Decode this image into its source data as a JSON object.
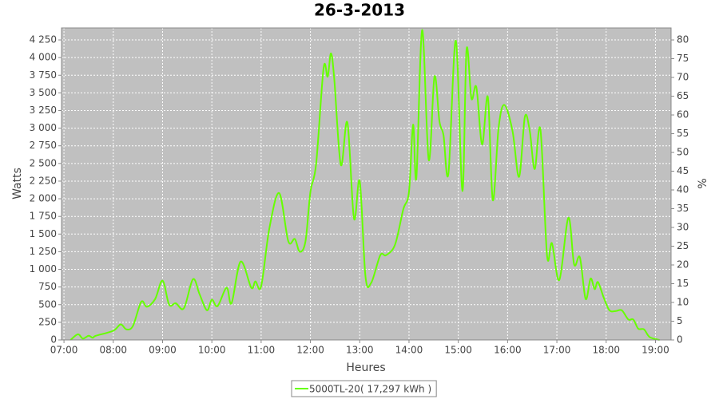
{
  "chart_data": {
    "type": "line",
    "title": "26-3-2013",
    "x_label": "Heures",
    "y_label": "Watts",
    "y2_label": "%",
    "x": [
      "07:08",
      "07:17",
      "07:23",
      "07:30",
      "07:35",
      "07:39",
      "08:00",
      "08:09",
      "08:16",
      "08:24",
      "08:34",
      "08:41",
      "08:51",
      "09:00",
      "09:08",
      "09:16",
      "09:26",
      "09:37",
      "09:45",
      "09:54",
      "10:00",
      "10:07",
      "10:18",
      "10:24",
      "10:35",
      "10:48",
      "10:53",
      "11:00",
      "11:10",
      "11:22",
      "11:33",
      "11:41",
      "11:47",
      "11:54",
      "12:00",
      "12:07",
      "12:16",
      "12:21",
      "12:25",
      "12:29",
      "12:37",
      "12:45",
      "12:53",
      "13:00",
      "13:07",
      "13:14",
      "13:25",
      "13:32",
      "13:43",
      "13:53",
      "14:00",
      "14:05",
      "14:09",
      "14:16",
      "14:24",
      "14:31",
      "14:37",
      "14:42",
      "14:48",
      "14:57",
      "15:05",
      "15:10",
      "15:16",
      "15:22",
      "15:29",
      "15:36",
      "15:42",
      "15:49",
      "15:56",
      "16:06",
      "16:14",
      "16:21",
      "16:27",
      "16:33",
      "16:40",
      "16:48",
      "16:54",
      "17:03",
      "17:14",
      "17:21",
      "17:28",
      "17:35",
      "17:41",
      "17:46",
      "17:50",
      "17:57",
      "18:04",
      "18:12",
      "18:19",
      "18:27",
      "18:33",
      "18:39",
      "18:46",
      "18:53",
      "19:05"
    ],
    "series": [
      {
        "name": "5000TL-20( 17,297 kWh )",
        "color": "#66ff00",
        "values": [
          0,
          80,
          20,
          60,
          30,
          60,
          130,
          220,
          150,
          200,
          540,
          470,
          580,
          840,
          500,
          520,
          450,
          860,
          650,
          420,
          570,
          480,
          740,
          520,
          1110,
          740,
          830,
          760,
          1580,
          2080,
          1400,
          1430,
          1250,
          1400,
          2100,
          2500,
          3850,
          3730,
          4060,
          3700,
          2480,
          3080,
          1720,
          2250,
          900,
          810,
          1200,
          1200,
          1350,
          1850,
          2100,
          3050,
          2300,
          4390,
          2550,
          3730,
          3100,
          2900,
          2360,
          4240,
          2110,
          4110,
          3420,
          3580,
          2770,
          3440,
          1980,
          3000,
          3330,
          2960,
          2310,
          3160,
          2960,
          2420,
          2980,
          1200,
          1370,
          850,
          1730,
          1070,
          1170,
          580,
          870,
          720,
          820,
          600,
          420,
          410,
          420,
          290,
          290,
          160,
          150,
          40,
          0
        ]
      }
    ],
    "xlim": [
      "06:57",
      "19:19"
    ],
    "xticks": [
      "07:00",
      "08:00",
      "09:00",
      "10:00",
      "11:00",
      "12:00",
      "13:00",
      "14:00",
      "15:00",
      "16:00",
      "17:00",
      "18:00",
      "19:00"
    ],
    "ylim": [
      0,
      4420
    ],
    "yticks": [
      0,
      250,
      500,
      750,
      {
        "value": 1000,
        "label": "1 000"
      },
      {
        "value": 1250,
        "label": "1 250"
      },
      {
        "value": 1500,
        "label": "1 500"
      },
      {
        "value": 1750,
        "label": "1 750"
      },
      {
        "value": 2000,
        "label": "2 000"
      },
      {
        "value": 2250,
        "label": "2 250"
      },
      {
        "value": 2500,
        "label": "2 500"
      },
      {
        "value": 2750,
        "label": "2 750"
      },
      {
        "value": 3000,
        "label": "3 000"
      },
      {
        "value": 3250,
        "label": "3 250"
      },
      {
        "value": 3500,
        "label": "3 500"
      },
      {
        "value": 3750,
        "label": "3 750"
      },
      {
        "value": 4000,
        "label": "4 000"
      },
      {
        "value": 4250,
        "label": "4 250"
      }
    ],
    "y2lim": [
      0,
      83.2
    ],
    "y2ticks": [
      0,
      5,
      10,
      15,
      20,
      25,
      30,
      35,
      40,
      45,
      50,
      55,
      60,
      65,
      70,
      75,
      80
    ],
    "grid": true,
    "legend": "bottom"
  }
}
